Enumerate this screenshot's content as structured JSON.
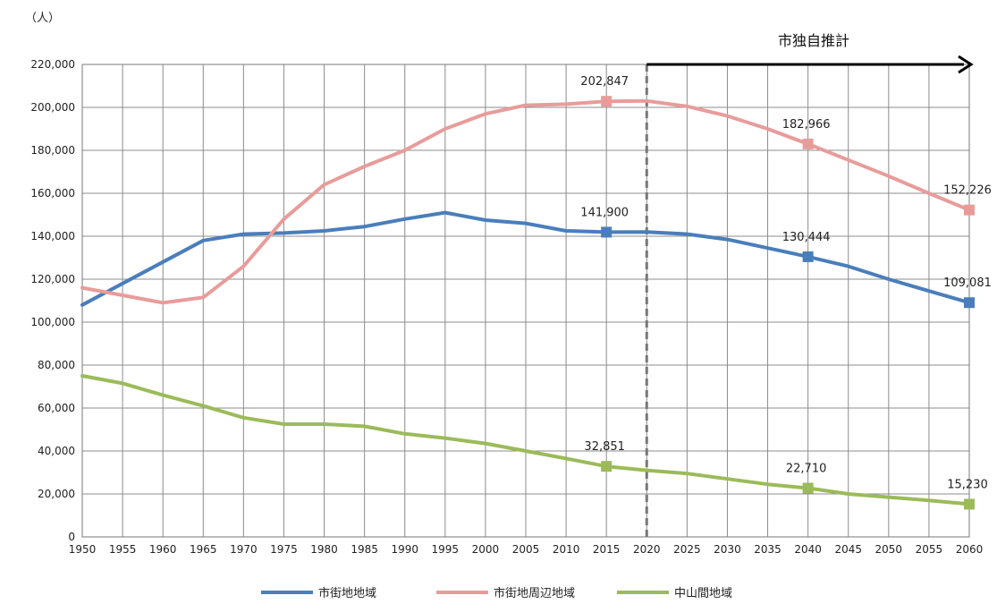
{
  "chart_data": {
    "type": "line",
    "unit_label": "（人）",
    "projection_label": "市独自推計",
    "projection_start": 2020,
    "x": [
      1950,
      1955,
      1960,
      1965,
      1970,
      1975,
      1980,
      1985,
      1990,
      1995,
      2000,
      2005,
      2010,
      2015,
      2020,
      2025,
      2030,
      2035,
      2040,
      2045,
      2050,
      2055,
      2060
    ],
    "x_tick_labels": [
      "1950",
      "1955",
      "1960",
      "1965",
      "1970",
      "1975",
      "1980",
      "1985",
      "1990",
      "1995",
      "2000",
      "2005",
      "2010",
      "2015",
      "2020",
      "2025",
      "2030",
      "2035",
      "2040",
      "2045",
      "2050",
      "2055",
      "2060"
    ],
    "y_ticks": [
      0,
      20000,
      40000,
      60000,
      80000,
      100000,
      120000,
      140000,
      160000,
      180000,
      200000,
      220000
    ],
    "y_tick_labels": [
      "0",
      "20,000",
      "40,000",
      "60,000",
      "80,000",
      "100,000",
      "120,000",
      "140,000",
      "160,000",
      "180,000",
      "200,000",
      "220,000"
    ],
    "ylim": [
      0,
      220000
    ],
    "grid": true,
    "legend_position": "bottom",
    "series": [
      {
        "name": "市街地地域",
        "color": "#4a7ebb",
        "values": [
          108000,
          118000,
          128000,
          138000,
          141000,
          141500,
          142500,
          144500,
          148000,
          151000,
          147500,
          146000,
          142500,
          141900,
          142000,
          141000,
          138500,
          134500,
          130444,
          126000,
          120000,
          114500,
          109081
        ]
      },
      {
        "name": "市街地周辺地域",
        "color": "#e89c9a",
        "values": [
          116000,
          112500,
          109000,
          111500,
          126000,
          148000,
          164000,
          172500,
          180000,
          190000,
          197000,
          201000,
          201500,
          202847,
          203000,
          200500,
          196000,
          190000,
          182966,
          175500,
          168000,
          160000,
          152226
        ]
      },
      {
        "name": "中山間地域",
        "color": "#9bbb59",
        "values": [
          75000,
          71500,
          66000,
          61000,
          55500,
          52500,
          52500,
          51500,
          48000,
          46000,
          43500,
          40000,
          36500,
          32851,
          31000,
          29500,
          27000,
          24500,
          22710,
          20000,
          18500,
          17000,
          15230
        ]
      }
    ],
    "data_labels": [
      {
        "text": "202,847",
        "x": 2015,
        "series": 1
      },
      {
        "text": "182,966",
        "x": 2040,
        "series": 1
      },
      {
        "text": "152,226",
        "x": 2060,
        "series": 1
      },
      {
        "text": "141,900",
        "x": 2015,
        "series": 0
      },
      {
        "text": "130,444",
        "x": 2040,
        "series": 0
      },
      {
        "text": "109,081",
        "x": 2060,
        "series": 0
      },
      {
        "text": "32,851",
        "x": 2015,
        "series": 2
      },
      {
        "text": "22,710",
        "x": 2040,
        "series": 2
      },
      {
        "text": "15,230",
        "x": 2060,
        "series": 2
      }
    ],
    "marker_years": [
      2015,
      2040,
      2060
    ]
  }
}
